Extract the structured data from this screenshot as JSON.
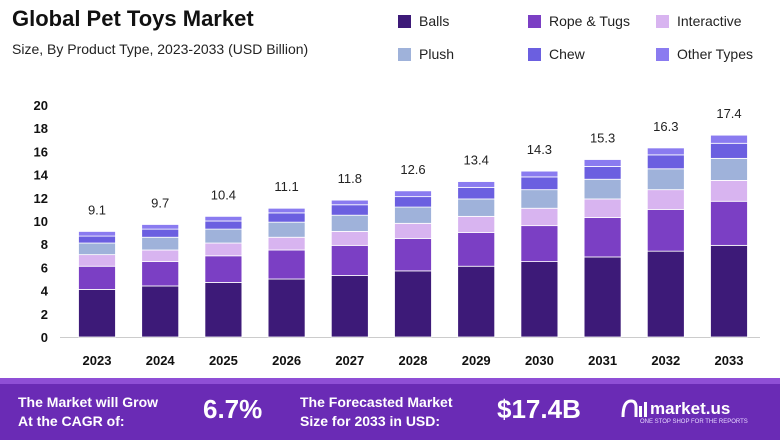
{
  "header": {
    "title": "Global Pet Toys Market",
    "subtitle": "Size, By Product Type, 2023-2033 (USD Billion)"
  },
  "legend": [
    {
      "label": "Balls",
      "color": "#3d1a78"
    },
    {
      "label": "Rope & Tugs",
      "color": "#7b3fc4"
    },
    {
      "label": "Interactive",
      "color": "#d8b4f0"
    },
    {
      "label": "Plush",
      "color": "#9fb2da"
    },
    {
      "label": "Chew",
      "color": "#6b5fe0"
    },
    {
      "label": "Other Types",
      "color": "#8a7bf0"
    }
  ],
  "chart_data": {
    "type": "bar",
    "stacked": true,
    "title": "Global Pet Toys Market",
    "subtitle": "Size, By Product Type, 2023-2033 (USD Billion)",
    "categories": [
      "2023",
      "2024",
      "2025",
      "2026",
      "2027",
      "2028",
      "2029",
      "2030",
      "2031",
      "2032",
      "2033"
    ],
    "totals": [
      9.1,
      9.7,
      10.4,
      11.1,
      11.8,
      12.6,
      13.4,
      14.3,
      15.3,
      16.3,
      17.4
    ],
    "total_labels": [
      "9.1",
      "9.7",
      "10.4",
      "11.1",
      "11.8",
      "12.6",
      "13.4",
      "14.3",
      "15.3",
      "16.3",
      "17.4"
    ],
    "series": [
      {
        "name": "Balls",
        "color": "#3d1a78",
        "values": [
          4.1,
          4.4,
          4.7,
          5.0,
          5.3,
          5.7,
          6.1,
          6.5,
          6.9,
          7.4,
          7.9
        ]
      },
      {
        "name": "Rope & Tugs",
        "color": "#7b3fc4",
        "values": [
          2.0,
          2.1,
          2.3,
          2.5,
          2.6,
          2.8,
          2.9,
          3.1,
          3.4,
          3.6,
          3.8
        ]
      },
      {
        "name": "Interactive",
        "color": "#d8b4f0",
        "values": [
          1.0,
          1.0,
          1.1,
          1.1,
          1.2,
          1.3,
          1.4,
          1.5,
          1.6,
          1.7,
          1.8
        ]
      },
      {
        "name": "Plush",
        "color": "#9fb2da",
        "values": [
          1.0,
          1.1,
          1.2,
          1.3,
          1.4,
          1.4,
          1.5,
          1.6,
          1.7,
          1.8,
          1.9
        ]
      },
      {
        "name": "Chew",
        "color": "#6b5fe0",
        "values": [
          0.6,
          0.7,
          0.7,
          0.8,
          0.9,
          0.9,
          1.0,
          1.1,
          1.1,
          1.2,
          1.3
        ]
      },
      {
        "name": "Other Types",
        "color": "#8a7bf0",
        "values": [
          0.4,
          0.4,
          0.4,
          0.4,
          0.4,
          0.5,
          0.5,
          0.5,
          0.6,
          0.6,
          0.7
        ]
      }
    ],
    "yticks": [
      "0",
      "2",
      "4",
      "6",
      "8",
      "10",
      "12",
      "14",
      "16",
      "18",
      "20"
    ],
    "ylim": [
      0,
      20
    ],
    "xlabel": "",
    "ylabel": "",
    "grid": false,
    "legend_position": "top-right"
  },
  "footer": {
    "cagr_label_1": "The Market will Grow",
    "cagr_label_2": "At the CAGR of:",
    "cagr_value": "6.7%",
    "forecast_label_1": "The Forecasted Market",
    "forecast_label_2": "Size for 2033 in USD:",
    "forecast_value": "$17.4B",
    "brand_name": "market.us",
    "brand_tagline": "ONE STOP SHOP FOR THE REPORTS",
    "brand_icon": "market-us-logo-icon"
  }
}
